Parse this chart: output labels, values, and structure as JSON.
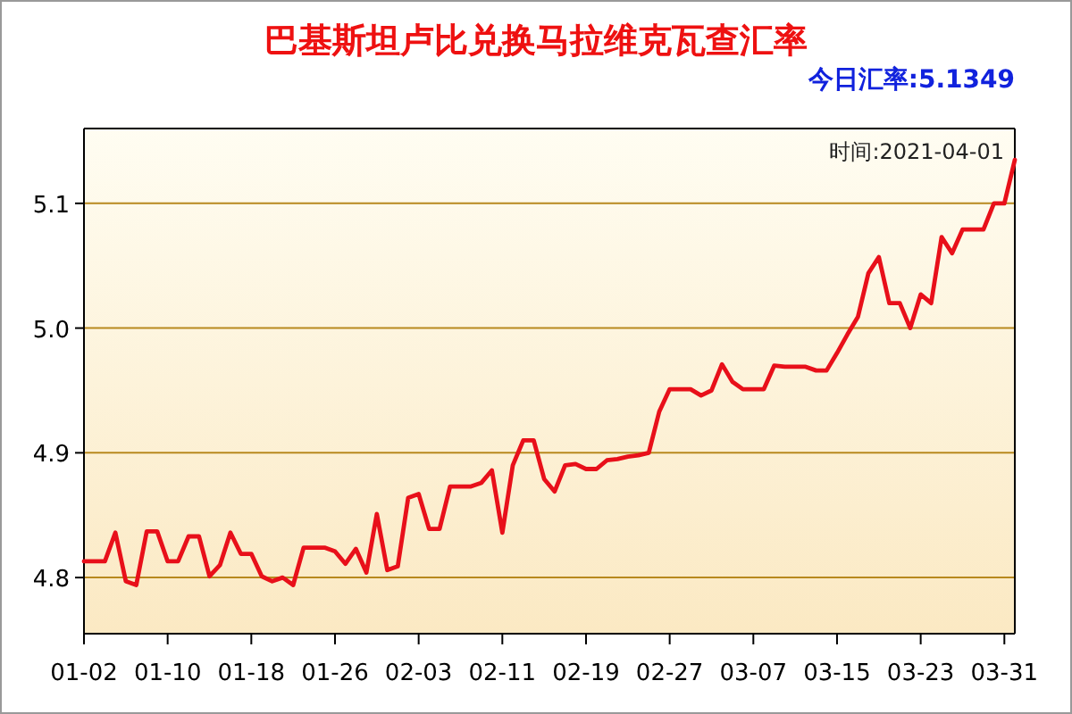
{
  "chart_data": {
    "type": "line",
    "title": "巴基斯坦卢比兑换马拉维克瓦查汇率",
    "subtitle": "今日汇率:5.1349",
    "annotations": [
      "时间:2021-04-01"
    ],
    "x": [
      "2021-01-02",
      "2021-01-03",
      "2021-01-04",
      "2021-01-05",
      "2021-01-06",
      "2021-01-07",
      "2021-01-08",
      "2021-01-09",
      "2021-01-10",
      "2021-01-11",
      "2021-01-12",
      "2021-01-13",
      "2021-01-14",
      "2021-01-15",
      "2021-01-16",
      "2021-01-17",
      "2021-01-18",
      "2021-01-19",
      "2021-01-20",
      "2021-01-21",
      "2021-01-22",
      "2021-01-23",
      "2021-01-24",
      "2021-01-25",
      "2021-01-26",
      "2021-01-27",
      "2021-01-28",
      "2021-01-29",
      "2021-01-30",
      "2021-01-31",
      "2021-02-01",
      "2021-02-02",
      "2021-02-03",
      "2021-02-04",
      "2021-02-05",
      "2021-02-06",
      "2021-02-07",
      "2021-02-08",
      "2021-02-09",
      "2021-02-10",
      "2021-02-11",
      "2021-02-12",
      "2021-02-13",
      "2021-02-14",
      "2021-02-15",
      "2021-02-16",
      "2021-02-17",
      "2021-02-18",
      "2021-02-19",
      "2021-02-20",
      "2021-02-21",
      "2021-02-22",
      "2021-02-23",
      "2021-02-24",
      "2021-02-25",
      "2021-02-26",
      "2021-02-27",
      "2021-02-28",
      "2021-03-01",
      "2021-03-02",
      "2021-03-03",
      "2021-03-04",
      "2021-03-05",
      "2021-03-06",
      "2021-03-07",
      "2021-03-08",
      "2021-03-09",
      "2021-03-10",
      "2021-03-11",
      "2021-03-12",
      "2021-03-13",
      "2021-03-14",
      "2021-03-15",
      "2021-03-16",
      "2021-03-17",
      "2021-03-18",
      "2021-03-19",
      "2021-03-20",
      "2021-03-21",
      "2021-03-22",
      "2021-03-23",
      "2021-03-24",
      "2021-03-25",
      "2021-03-26",
      "2021-03-27",
      "2021-03-28",
      "2021-03-29",
      "2021-03-30",
      "2021-03-31",
      "2021-04-01"
    ],
    "series": [
      {
        "color": "#e8101a",
        "values": [
          4.813,
          4.813,
          4.813,
          4.836,
          4.797,
          4.794,
          4.837,
          4.837,
          4.813,
          4.813,
          4.833,
          4.833,
          4.801,
          4.81,
          4.836,
          4.819,
          4.819,
          4.801,
          4.797,
          4.8,
          4.794,
          4.824,
          4.824,
          4.824,
          4.821,
          4.811,
          4.823,
          4.804,
          4.851,
          4.806,
          4.809,
          4.864,
          4.867,
          4.839,
          4.839,
          4.873,
          4.873,
          4.873,
          4.876,
          4.886,
          4.836,
          4.89,
          4.91,
          4.91,
          4.879,
          4.869,
          4.89,
          4.891,
          4.887,
          4.887,
          4.894,
          4.895,
          4.897,
          4.898,
          4.9,
          4.933,
          4.951,
          4.951,
          4.951,
          4.946,
          4.95,
          4.971,
          4.957,
          4.951,
          4.951,
          4.951,
          4.97,
          4.969,
          4.969,
          4.969,
          4.966,
          4.966,
          4.98,
          4.995,
          5.009,
          5.044,
          5.057,
          5.02,
          5.02,
          5.0,
          5.027,
          5.02,
          5.073,
          5.06,
          5.079,
          5.079,
          5.079,
          5.1,
          5.1,
          5.1349
        ]
      }
    ],
    "xlim": [
      "2021-01-02",
      "2021-04-01"
    ],
    "xticks": [
      {
        "value": "2021-01-02",
        "label": "01-02"
      },
      {
        "value": "2021-01-10",
        "label": "01-10"
      },
      {
        "value": "2021-01-18",
        "label": "01-18"
      },
      {
        "value": "2021-01-26",
        "label": "01-26"
      },
      {
        "value": "2021-02-03",
        "label": "02-03"
      },
      {
        "value": "2021-02-11",
        "label": "02-11"
      },
      {
        "value": "2021-02-19",
        "label": "02-19"
      },
      {
        "value": "2021-02-27",
        "label": "02-27"
      },
      {
        "value": "2021-03-07",
        "label": "03-07"
      },
      {
        "value": "2021-03-15",
        "label": "03-15"
      },
      {
        "value": "2021-03-23",
        "label": "03-23"
      },
      {
        "value": "2021-03-31",
        "label": "03-31"
      }
    ],
    "ylim": [
      4.755,
      5.16
    ],
    "yticks": [
      4.8,
      4.9,
      {
        "value": 5,
        "label": "5.0"
      },
      5.1
    ],
    "grid": "y",
    "marker": "none",
    "line_style": "solid"
  }
}
